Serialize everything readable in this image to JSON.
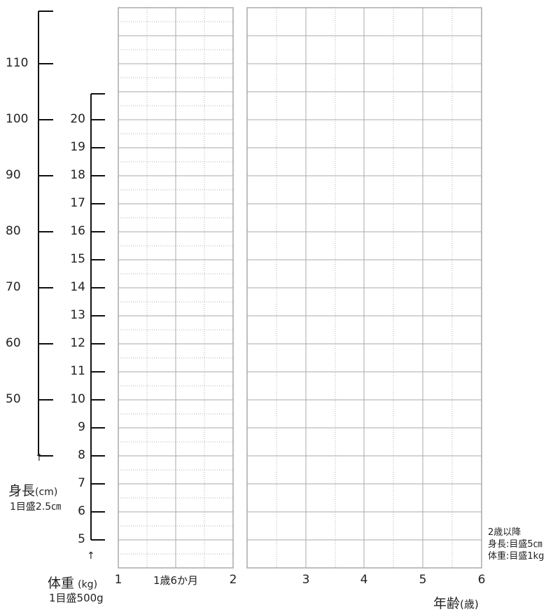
{
  "chart_data": {
    "type": "table",
    "height_axis": {
      "ticks": [
        "110",
        "100",
        "90",
        "80",
        "70",
        "60",
        "50"
      ],
      "label": "身長",
      "unit": "(cm)",
      "scale_note": "1目盛2.5㎝"
    },
    "weight_axis": {
      "ticks": [
        "20",
        "19",
        "18",
        "17",
        "16",
        "15",
        "14",
        "13",
        "12",
        "11",
        "10",
        "9",
        "8",
        "7",
        "6",
        "5"
      ],
      "label": "体重",
      "unit": "(kg)",
      "scale_note": "1目盛500g"
    },
    "age_axis": {
      "ticks": [
        "1",
        "1歳6か月",
        "2",
        "3",
        "4",
        "5",
        "6"
      ],
      "label": "年齢",
      "unit": "(歳)"
    },
    "note": [
      "2歳以降",
      "身長:目盛5㎝",
      "体重:目盛1kg"
    ],
    "arrow_glyph": "↑",
    "colors": {
      "grid_major": "#aaaaaa",
      "grid_minor": "#b0b0b0",
      "axis": "#111111"
    }
  }
}
